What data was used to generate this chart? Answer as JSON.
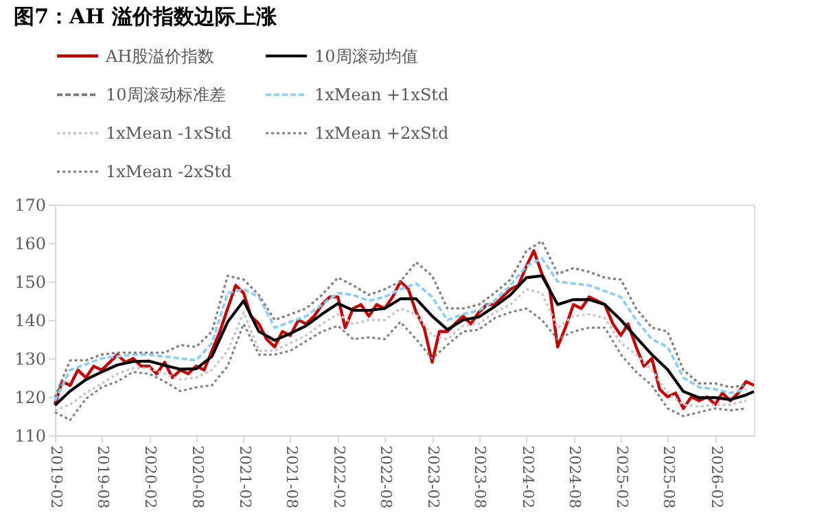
{
  "chart_data": {
    "type": "line",
    "title": "图7：AH 溢价指数边际上涨",
    "xlim": [
      "2019-02",
      "2026-07"
    ],
    "xticks": [
      "2019-02",
      "2019-08",
      "2020-02",
      "2020-08",
      "2021-02",
      "2021-08",
      "2022-02",
      "2022-08",
      "2023-02",
      "2023-08",
      "2024-02",
      "2024-08",
      "2025-02",
      "2025-08",
      "2026-02"
    ],
    "ylim": [
      110,
      170
    ],
    "yticks": [
      110,
      120,
      130,
      140,
      150,
      160,
      170
    ],
    "grid": false,
    "legend": "top",
    "marker": "none",
    "series": [
      {
        "name": "AH股溢价指数",
        "color": "#c00000",
        "line_style": "solid",
        "x": [
          "2019-02",
          "2019-03",
          "2019-04",
          "2019-05",
          "2019-06",
          "2019-07",
          "2019-08",
          "2019-09",
          "2019-10",
          "2019-11",
          "2019-12",
          "2020-01",
          "2020-02",
          "2020-03",
          "2020-04",
          "2020-05",
          "2020-06",
          "2020-07",
          "2020-08",
          "2020-09",
          "2020-10",
          "2020-11",
          "2020-12",
          "2021-01",
          "2021-02",
          "2021-03",
          "2021-04",
          "2021-05",
          "2021-06",
          "2021-07",
          "2021-08",
          "2021-09",
          "2021-10",
          "2021-11",
          "2021-12",
          "2022-01",
          "2022-02",
          "2022-03",
          "2022-04",
          "2022-05",
          "2022-06",
          "2022-07",
          "2022-08",
          "2022-09",
          "2022-10",
          "2022-11",
          "2022-12",
          "2023-01",
          "2023-02",
          "2023-03",
          "2023-04",
          "2023-05",
          "2023-06",
          "2023-07",
          "2023-08",
          "2023-09",
          "2023-10",
          "2023-11",
          "2023-12",
          "2024-01",
          "2024-02",
          "2024-03",
          "2024-04",
          "2024-05",
          "2024-06",
          "2024-07",
          "2024-08",
          "2024-09",
          "2024-10",
          "2024-11",
          "2024-12",
          "2025-01",
          "2025-02",
          "2025-03",
          "2025-04",
          "2025-05",
          "2025-06",
          "2025-07",
          "2025-08",
          "2025-09",
          "2025-10",
          "2025-11",
          "2025-12",
          "2026-01",
          "2026-02",
          "2026-03",
          "2026-04",
          "2026-05",
          "2026-06",
          "2026-07"
        ],
        "values": [
          118,
          124,
          123,
          127,
          125,
          128,
          127,
          129,
          131,
          129,
          130,
          128,
          128,
          126,
          129,
          125,
          127,
          126,
          128,
          127,
          132,
          137,
          143,
          149,
          147,
          141,
          139,
          135,
          133,
          137,
          136,
          140,
          139,
          141,
          144,
          146,
          146,
          138,
          143,
          144,
          141,
          144,
          143,
          146,
          150,
          148,
          142,
          138,
          129,
          137,
          137,
          139,
          141,
          139,
          142,
          144,
          144,
          146,
          148,
          149,
          154,
          158,
          152,
          148,
          133,
          138,
          144,
          143,
          146,
          145,
          144,
          139,
          136,
          139,
          133,
          128,
          130,
          122,
          120,
          121,
          117,
          120,
          119,
          120,
          118,
          121,
          119,
          121,
          124,
          123
        ]
      },
      {
        "name": "10周滚动均值",
        "color": "#000000",
        "line_style": "solid",
        "x": [
          "2019-02",
          "2019-04",
          "2019-06",
          "2019-08",
          "2019-10",
          "2019-12",
          "2020-02",
          "2020-04",
          "2020-06",
          "2020-08",
          "2020-10",
          "2020-12",
          "2021-02",
          "2021-04",
          "2021-06",
          "2021-08",
          "2021-10",
          "2021-12",
          "2022-02",
          "2022-04",
          "2022-06",
          "2022-08",
          "2022-10",
          "2022-12",
          "2023-02",
          "2023-04",
          "2023-06",
          "2023-08",
          "2023-10",
          "2023-12",
          "2024-02",
          "2024-04",
          "2024-06",
          "2024-08",
          "2024-10",
          "2024-12",
          "2025-02",
          "2025-04",
          "2025-06",
          "2025-08",
          "2025-10",
          "2025-12",
          "2026-02",
          "2026-04",
          "2026-06",
          "2026-07"
        ],
        "values": [
          117.8,
          121.5,
          124.5,
          126.5,
          128.3,
          129.2,
          129.3,
          128.2,
          127.2,
          127.3,
          130.5,
          139.5,
          145,
          137,
          134.7,
          136.5,
          138.5,
          141.5,
          144.3,
          142.5,
          142.5,
          143,
          145.5,
          145.5,
          141,
          137.5,
          140,
          140.8,
          143.5,
          146.5,
          151,
          151.5,
          144,
          145.3,
          145.3,
          144,
          140,
          135.5,
          131,
          127.1,
          121.4,
          119.8,
          119.8,
          119.3,
          120.5,
          121.4
        ]
      },
      {
        "name": "10周滚动标准差",
        "color": "#7f7f7f",
        "line_style": "dashed"
      },
      {
        "name": "1xMean +1xStd",
        "color": "#8ecbf5",
        "line_style": "dashed",
        "x": [
          "2019-02",
          "2019-04",
          "2019-06",
          "2019-08",
          "2019-10",
          "2019-12",
          "2020-02",
          "2020-04",
          "2020-06",
          "2020-08",
          "2020-10",
          "2020-12",
          "2021-02",
          "2021-04",
          "2021-06",
          "2021-08",
          "2021-10",
          "2021-12",
          "2022-02",
          "2022-04",
          "2022-06",
          "2022-08",
          "2022-10",
          "2022-12",
          "2023-02",
          "2023-04",
          "2023-06",
          "2023-08",
          "2023-10",
          "2023-12",
          "2024-02",
          "2024-04",
          "2024-06",
          "2024-08",
          "2024-10",
          "2024-12",
          "2025-02",
          "2025-04",
          "2025-06",
          "2025-08",
          "2025-10",
          "2025-12",
          "2026-02",
          "2026-04",
          "2026-06"
        ],
        "values": [
          119,
          127,
          128.5,
          130,
          130.5,
          131,
          131,
          130.5,
          130,
          129.5,
          134,
          147,
          148,
          146,
          138,
          139.5,
          141,
          144,
          147,
          146.5,
          145,
          146,
          148,
          149.5,
          146,
          140,
          141.5,
          142.5,
          145,
          149,
          154,
          156,
          150,
          149.5,
          149,
          147.5,
          146,
          140,
          135,
          133,
          125,
          122.5,
          122,
          121,
          122
        ]
      },
      {
        "name": "1xMean -1xStd",
        "color": "#c8c8c8",
        "line_style": "dotted",
        "x": [
          "2019-02",
          "2019-04",
          "2019-06",
          "2019-08",
          "2019-10",
          "2019-12",
          "2020-02",
          "2020-04",
          "2020-06",
          "2020-08",
          "2020-10",
          "2020-12",
          "2021-02",
          "2021-04",
          "2021-06",
          "2021-08",
          "2021-10",
          "2021-12",
          "2022-02",
          "2022-04",
          "2022-06",
          "2022-08",
          "2022-10",
          "2022-12",
          "2023-02",
          "2023-04",
          "2023-06",
          "2023-08",
          "2023-10",
          "2023-12",
          "2024-02",
          "2024-04",
          "2024-06",
          "2024-08",
          "2024-10",
          "2024-12",
          "2025-02",
          "2025-04",
          "2025-06",
          "2025-08",
          "2025-10",
          "2025-12",
          "2026-02",
          "2026-04",
          "2026-06"
        ],
        "values": [
          116.5,
          118,
          121,
          123.5,
          126,
          127.5,
          127.5,
          126,
          124.5,
          125,
          127,
          132,
          142,
          132,
          132,
          134,
          136,
          139,
          141.5,
          139,
          140,
          140,
          143,
          141.5,
          136,
          135,
          138.5,
          139,
          142,
          144,
          148,
          147,
          138,
          141,
          141.5,
          140.5,
          134,
          131,
          127,
          121,
          118,
          117.5,
          118,
          118,
          119
        ]
      },
      {
        "name": "1xMean +2xStd",
        "color": "#7f7f7f",
        "line_style": "dotted",
        "x": [
          "2019-02",
          "2019-04",
          "2019-06",
          "2019-08",
          "2019-10",
          "2019-12",
          "2020-02",
          "2020-04",
          "2020-06",
          "2020-08",
          "2020-10",
          "2020-12",
          "2021-02",
          "2021-04",
          "2021-06",
          "2021-08",
          "2021-10",
          "2021-12",
          "2022-02",
          "2022-04",
          "2022-06",
          "2022-08",
          "2022-10",
          "2022-12",
          "2023-02",
          "2023-04",
          "2023-06",
          "2023-08",
          "2023-10",
          "2023-12",
          "2024-02",
          "2024-04",
          "2024-06",
          "2024-08",
          "2024-10",
          "2024-12",
          "2025-02",
          "2025-04",
          "2025-06",
          "2025-08",
          "2025-10",
          "2025-12",
          "2026-02",
          "2026-04",
          "2026-06"
        ],
        "values": [
          120,
          129.5,
          129.5,
          131,
          131.5,
          131.5,
          131.5,
          131.5,
          133.5,
          133,
          137,
          151.5,
          150.5,
          146.5,
          140,
          141.5,
          143,
          146.5,
          151,
          149,
          146.5,
          148,
          150,
          155,
          151.5,
          143,
          143,
          144,
          147,
          150.5,
          158,
          160.5,
          152,
          153.5,
          152.5,
          151,
          150.5,
          143,
          138,
          137,
          127,
          123.5,
          123.5,
          122.5,
          123
        ]
      },
      {
        "name": "1xMean -2xStd",
        "color": "#7f7f7f",
        "line_style": "dotted",
        "x": [
          "2019-02",
          "2019-04",
          "2019-06",
          "2019-08",
          "2019-10",
          "2019-12",
          "2020-02",
          "2020-04",
          "2020-06",
          "2020-08",
          "2020-10",
          "2020-12",
          "2021-02",
          "2021-04",
          "2021-06",
          "2021-08",
          "2021-10",
          "2021-12",
          "2022-02",
          "2022-04",
          "2022-06",
          "2022-08",
          "2022-10",
          "2022-12",
          "2023-02",
          "2023-04",
          "2023-06",
          "2023-08",
          "2023-10",
          "2023-12",
          "2024-02",
          "2024-04",
          "2024-06",
          "2024-08",
          "2024-10",
          "2024-12",
          "2025-02",
          "2025-04",
          "2025-06",
          "2025-08",
          "2025-10",
          "2025-12",
          "2026-02",
          "2026-04",
          "2026-06"
        ],
        "values": [
          116,
          114,
          119.5,
          122.5,
          124,
          126.5,
          126,
          124,
          121.5,
          122.5,
          123,
          128,
          139,
          131,
          131,
          132,
          134.5,
          137,
          138.5,
          135,
          135.5,
          135,
          139.5,
          135,
          130,
          133.5,
          137,
          137.5,
          140.5,
          142,
          143,
          140,
          135,
          137,
          138,
          138,
          131,
          126.5,
          123,
          117,
          115,
          116,
          117,
          116.5,
          117
        ]
      }
    ]
  }
}
